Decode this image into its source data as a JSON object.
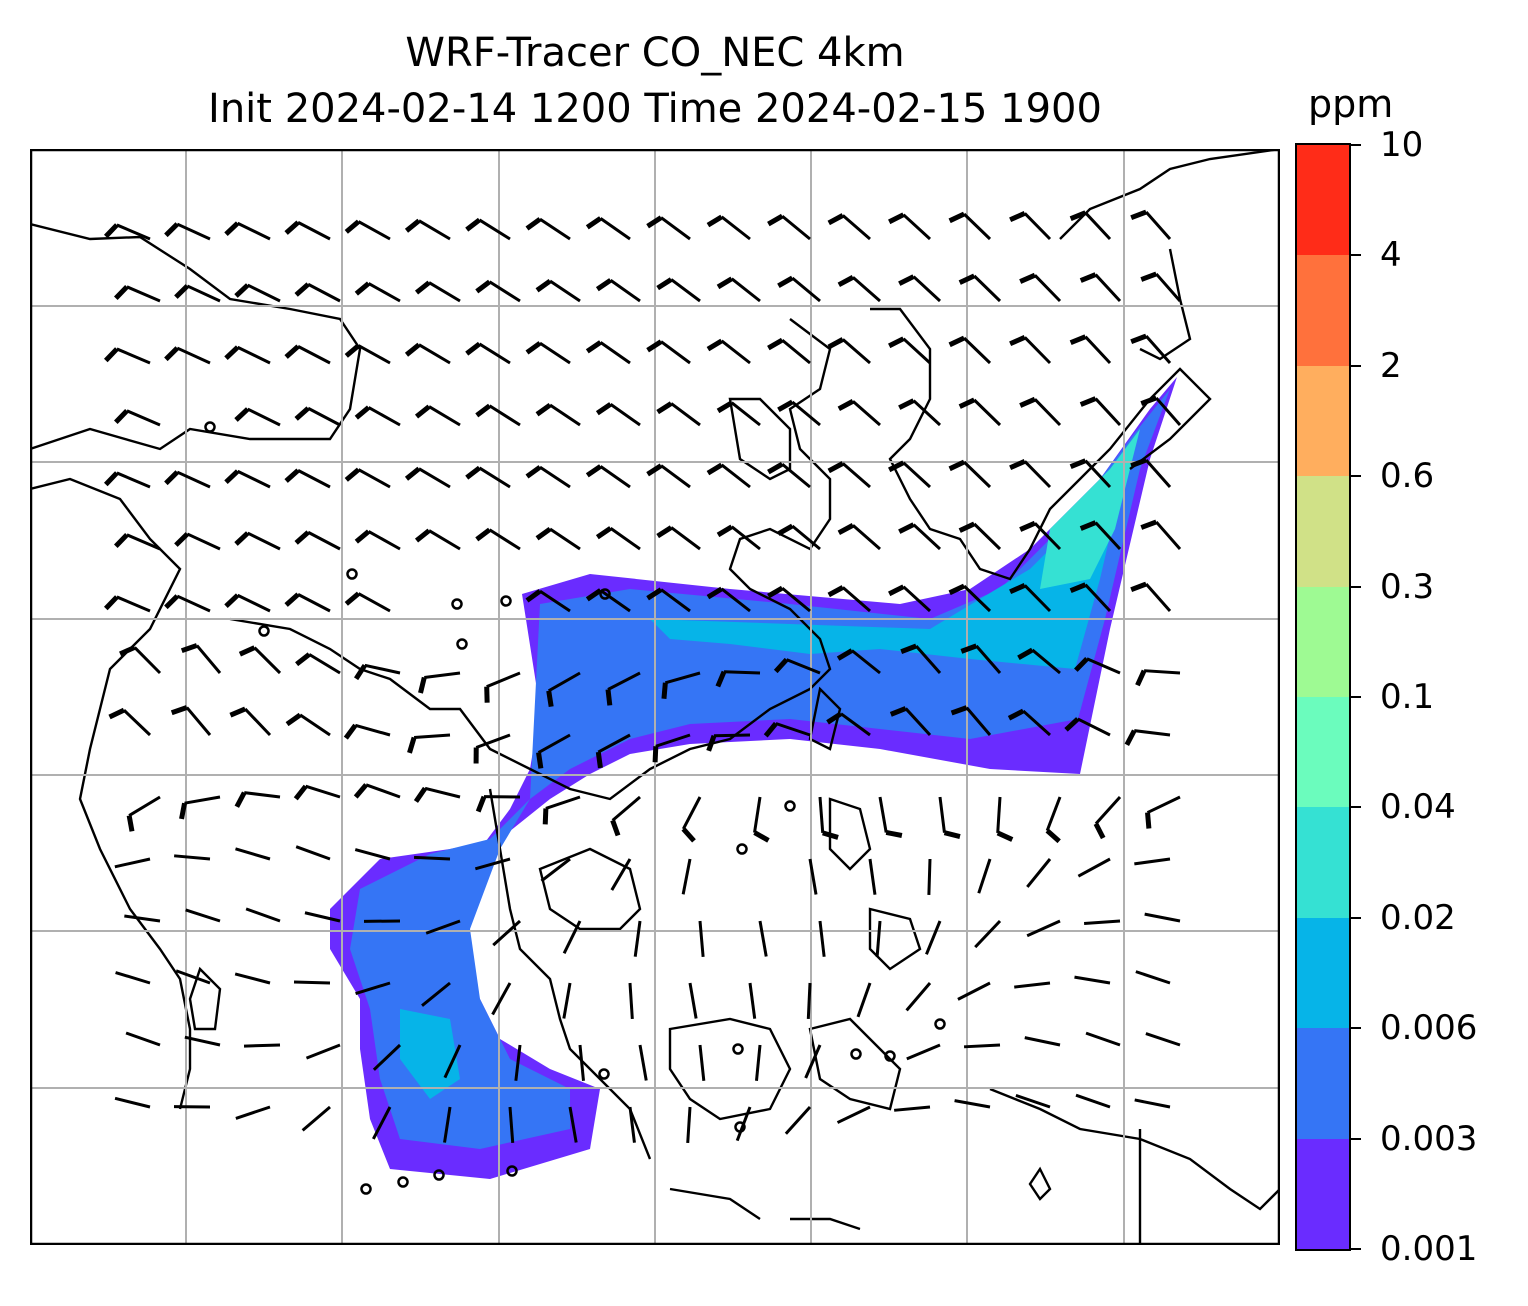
{
  "title": {
    "line1": "WRF-Tracer CO_NEC 4km",
    "line2": "Init 2024-02-14 1200 Time 2024-02-15 1900"
  },
  "colorbar": {
    "unit": "ppm",
    "levels": [
      "0.001",
      "0.003",
      "0.006",
      "0.02",
      "0.04",
      "0.1",
      "0.3",
      "0.6",
      "2",
      "4",
      "10"
    ],
    "colors": [
      "#6a2cff",
      "#3575f5",
      "#06b4e8",
      "#35e1d3",
      "#6bfcbd",
      "#9efa93",
      "#d0e187",
      "#ffae5e",
      "#ff713c",
      "#ff2c18"
    ]
  },
  "map": {
    "projection_grid": "lat/lon graticule, 8 x 7 cells",
    "plume": {
      "color_low": "#6a2cff",
      "color_mid": "#3575f5",
      "color_high": "#06b4e8",
      "color_peak": "#35e1d3"
    },
    "wind_barbs": "wind barbs over domain, pointing from north-east",
    "calm_symbols": "open circles mark calm winds"
  }
}
